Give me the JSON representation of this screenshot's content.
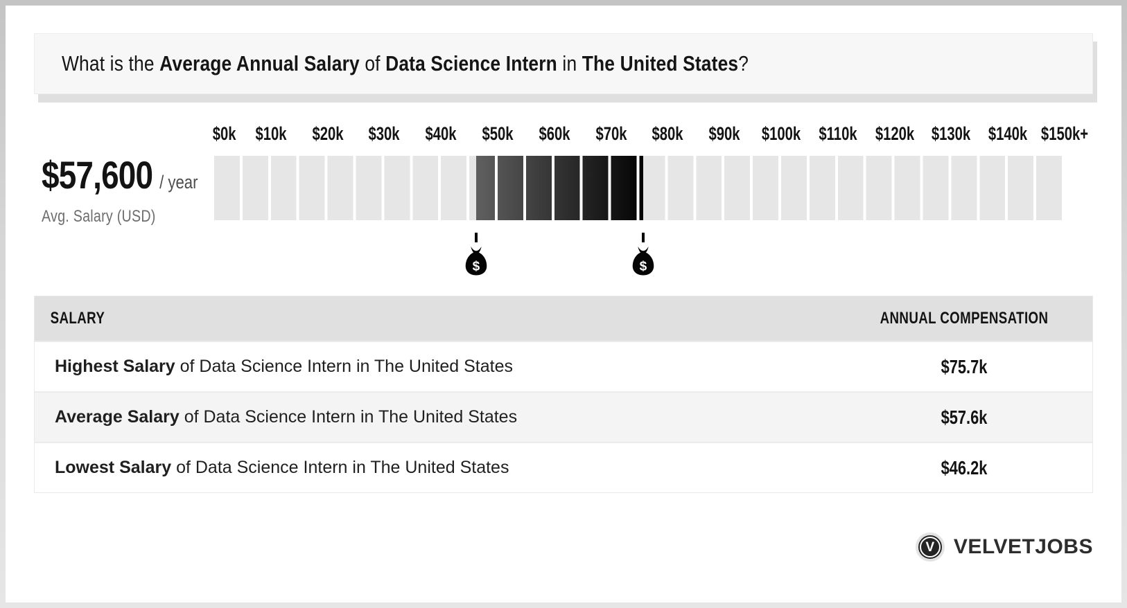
{
  "title": {
    "prefix": "What is the ",
    "bold1": "Average Annual Salary",
    "mid1": " of ",
    "bold2": "Data Science Intern",
    "mid2": " in ",
    "bold3": "The United States",
    "suffix": "?"
  },
  "summary": {
    "amount": "$57,600",
    "per": "/ year",
    "caption": "Avg. Salary (USD)"
  },
  "chart_data": {
    "type": "range-scale",
    "title": "Salary scale of Data Science Intern in The United States",
    "unit": "USD thousands per year",
    "axis_min": 0,
    "axis_max": 150,
    "segment_step": 5,
    "tick_step": 10,
    "tick_labels": [
      "$0k",
      "$10k",
      "$20k",
      "$30k",
      "$40k",
      "$50k",
      "$60k",
      "$70k",
      "$80k",
      "$90k",
      "$100k",
      "$110k",
      "$120k",
      "$130k",
      "$140k",
      "$150k+"
    ],
    "highlight_range": {
      "low": 46.2,
      "high": 75.7
    },
    "average": 57.6,
    "markers": [
      {
        "name": "lowest-salary",
        "value": 46.2,
        "icon": "money-bag-icon",
        "glyph": "$"
      },
      {
        "name": "highest-salary",
        "value": 75.7,
        "icon": "money-bag-icon",
        "glyph": "$"
      }
    ],
    "colors": {
      "track": "#e6e6e6",
      "range_start": "#606060",
      "range_end": "#030303",
      "gap": "#ffffff"
    }
  },
  "table": {
    "headers": [
      "SALARY",
      "ANNUAL COMPENSATION"
    ],
    "rows": [
      {
        "label_bold": "Highest Salary",
        "label_rest": " of Data Science Intern in The United States",
        "value": "$75.7k",
        "highlight": false
      },
      {
        "label_bold": "Average Salary",
        "label_rest": " of Data Science Intern in The United States",
        "value": "$57.6k",
        "highlight": true
      },
      {
        "label_bold": "Lowest Salary",
        "label_rest": " of Data Science Intern in The United States",
        "value": "$46.2k",
        "highlight": false
      }
    ]
  },
  "logo": {
    "monogram": "V",
    "name": "VELVETJOBS"
  }
}
